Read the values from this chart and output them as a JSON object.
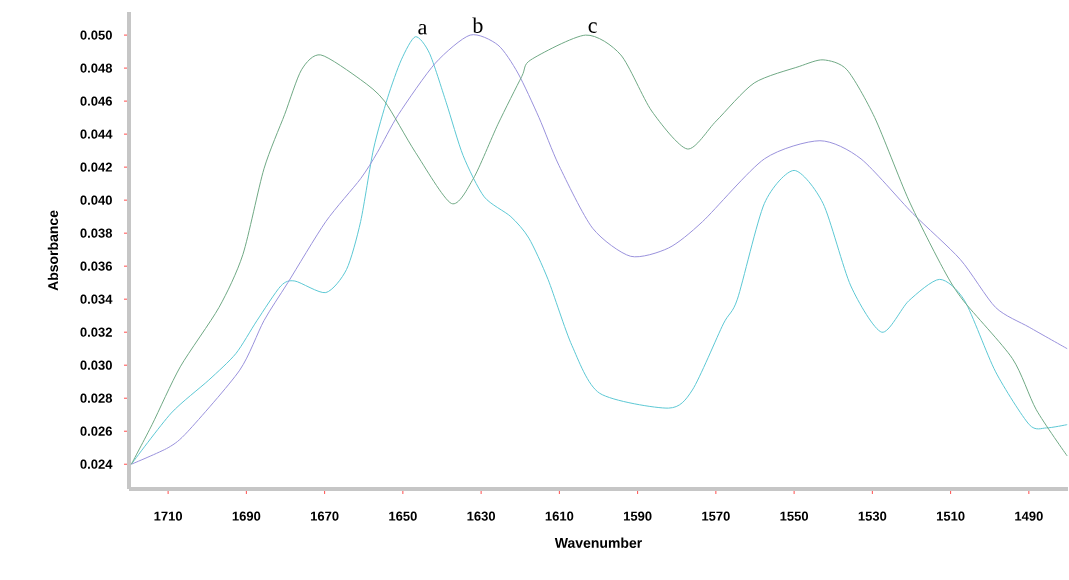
{
  "chart_data": {
    "type": "line",
    "xlabel": "Wavenumber",
    "ylabel": "Absorbance",
    "xlim": [
      1720,
      1480
    ],
    "ylim": [
      0.0225,
      0.0514
    ],
    "xticks": [
      1710,
      1690,
      1670,
      1650,
      1630,
      1610,
      1590,
      1570,
      1550,
      1530,
      1510,
      1490
    ],
    "yticks": [
      {
        "value": 0.024,
        "label": "0.024"
      },
      {
        "value": 0.026,
        "label": "0.026"
      },
      {
        "value": 0.028,
        "label": "0.028"
      },
      {
        "value": 0.03,
        "label": "0.030"
      },
      {
        "value": 0.032,
        "label": "0.032"
      },
      {
        "value": 0.034,
        "label": "0.034"
      },
      {
        "value": 0.036,
        "label": "0.036"
      },
      {
        "value": 0.038,
        "label": "0.038"
      },
      {
        "value": 0.04,
        "label": "0.040"
      },
      {
        "value": 0.042,
        "label": "0.042"
      },
      {
        "value": 0.044,
        "label": "0.044"
      },
      {
        "value": 0.046,
        "label": "0.046"
      },
      {
        "value": 0.048,
        "label": "0.048"
      },
      {
        "value": 0.05,
        "label": "0.050"
      }
    ],
    "grid": false,
    "legend": false,
    "marker": "none",
    "line_style": "solid",
    "series": [
      {
        "name": "a",
        "color": "#5cc8d4",
        "x": [
          1719.4,
          1709.2,
          1699.6,
          1692.7,
          1687.3,
          1681.2,
          1677.6,
          1669.7,
          1664.4,
          1660.8,
          1657.5,
          1653.9,
          1650.4,
          1646.8,
          1643.2,
          1638.9,
          1634.6,
          1629.2,
          1622.4,
          1617.8,
          1612.9,
          1606.8,
          1599.7,
          1582.1,
          1576.0,
          1568.1,
          1564.5,
          1557.6,
          1550.0,
          1542.6,
          1535.5,
          1527.6,
          1520.7,
          1512.8,
          1506.4,
          1498.5,
          1489.9,
          1485.5,
          1480.2
        ],
        "values": [
          0.024,
          0.0271,
          0.0291,
          0.0307,
          0.0327,
          0.0348,
          0.0351,
          0.0344,
          0.0358,
          0.0387,
          0.0431,
          0.0462,
          0.0485,
          0.0499,
          0.0489,
          0.0459,
          0.0427,
          0.0402,
          0.039,
          0.0377,
          0.0352,
          0.0312,
          0.0283,
          0.0274,
          0.0285,
          0.0325,
          0.034,
          0.0398,
          0.0418,
          0.0398,
          0.0348,
          0.032,
          0.0339,
          0.0352,
          0.0339,
          0.0296,
          0.0264,
          0.0262,
          0.0264
        ]
      },
      {
        "name": "b",
        "color": "#9a92dc",
        "x": [
          1719.4,
          1710.0,
          1704.9,
          1691.7,
          1685.5,
          1679.4,
          1669.7,
          1660.8,
          1656.5,
          1651.1,
          1641.7,
          1632.8,
          1625.7,
          1620.6,
          1615.2,
          1610.1,
          1601.5,
          1591.8,
          1582.1,
          1573.4,
          1557.6,
          1543.4,
          1532.9,
          1519.7,
          1507.5,
          1498.5,
          1489.9,
          1480.2
        ],
        "values": [
          0.024,
          0.025,
          0.026,
          0.0297,
          0.0327,
          0.035,
          0.0387,
          0.0413,
          0.0429,
          0.0452,
          0.0483,
          0.05,
          0.0494,
          0.0477,
          0.045,
          0.0421,
          0.0383,
          0.0366,
          0.0371,
          0.0387,
          0.0425,
          0.0436,
          0.0425,
          0.0392,
          0.0364,
          0.0335,
          0.0323,
          0.031
        ]
      },
      {
        "name": "c",
        "color": "#6fa985",
        "x": [
          1719.4,
          1714.1,
          1706.9,
          1697.0,
          1690.9,
          1685.5,
          1680.2,
          1675.9,
          1671.0,
          1660.8,
          1654.7,
          1646.8,
          1637.6,
          1632.0,
          1625.7,
          1619.6,
          1617.3,
          1603.3,
          1594.3,
          1586.4,
          1577.3,
          1569.9,
          1560.2,
          1548.7,
          1542.6,
          1536.5,
          1529.4,
          1520.7,
          1511.8,
          1506.7,
          1494.2,
          1488.1,
          1480.2
        ],
        "values": [
          0.024,
          0.0264,
          0.0299,
          0.0335,
          0.0367,
          0.0419,
          0.0452,
          0.0479,
          0.0488,
          0.0473,
          0.046,
          0.0429,
          0.0398,
          0.0413,
          0.0446,
          0.0475,
          0.0485,
          0.05,
          0.0488,
          0.0454,
          0.0431,
          0.0448,
          0.0471,
          0.0481,
          0.0485,
          0.0479,
          0.045,
          0.04,
          0.0358,
          0.0339,
          0.0304,
          0.0273,
          0.0245
        ]
      }
    ]
  }
}
